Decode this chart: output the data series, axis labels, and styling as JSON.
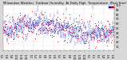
{
  "title": "Milwaukee Weather  Outdoor Humidity  At Daily High  Temperature  (Past Year)",
  "bg_color": "#d8d8d8",
  "plot_bg_color": "#ffffff",
  "ylim": [
    0,
    100
  ],
  "yticks": [
    10,
    20,
    30,
    40,
    50,
    60,
    70,
    80,
    90,
    100
  ],
  "ytick_labels": [
    "10",
    "20",
    "30",
    "40",
    "50",
    "60",
    "70",
    "80",
    "90",
    "100"
  ],
  "n_points": 365,
  "seed": 42,
  "blue_color": "#0000bb",
  "red_color": "#cc0000",
  "grid_color": "#bbbbbb",
  "title_fontsize": 2.8,
  "tick_fontsize": 2.5,
  "n_gridlines": 11,
  "spike_index": 295,
  "spike_value": 98
}
